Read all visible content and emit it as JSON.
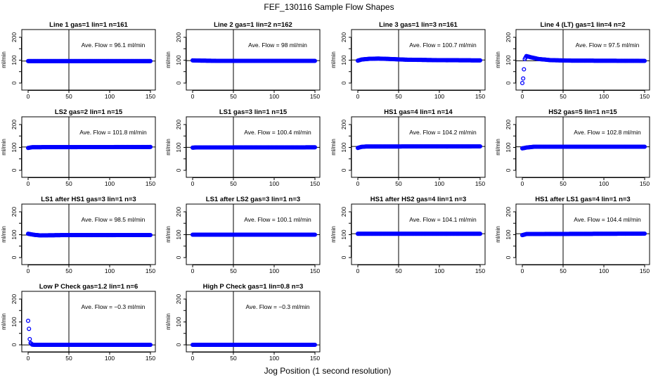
{
  "figure": {
    "title": "FEF_130116  Sample Flow Shapes",
    "xlabel": "Jog Position (1 second resolution)",
    "ylabel": "ml/min",
    "annotation_prefix": "Ave. Flow = ",
    "annotation_unit": "ml/min"
  },
  "colors": {
    "points": "#0000ff",
    "lines": "#000000",
    "background": "#ffffff"
  },
  "chart_data": [
    {
      "type": "scatter",
      "title": "Line 1 gas=1 lin=1 n=161",
      "ylabel": "ml/min",
      "xlim": [
        0,
        150
      ],
      "ylim": [
        0,
        200
      ],
      "x_ticks": [
        0,
        50,
        100,
        150
      ],
      "y_ticks": [
        0,
        100,
        200
      ],
      "vline": 50,
      "hline": 96.1,
      "ave_flow": "96.1",
      "profile": [
        [
          0,
          96
        ],
        [
          150,
          96
        ]
      ]
    },
    {
      "type": "scatter",
      "title": "Line 2 gas=1 lin=2 n=162",
      "ylabel": "ml/min",
      "xlim": [
        0,
        150
      ],
      "ylim": [
        0,
        200
      ],
      "x_ticks": [
        0,
        50,
        100,
        150
      ],
      "y_ticks": [
        0,
        100,
        200
      ],
      "vline": 50,
      "hline": 98,
      "ave_flow": "98",
      "profile": [
        [
          0,
          99
        ],
        [
          10,
          98
        ],
        [
          30,
          97
        ],
        [
          150,
          97
        ]
      ]
    },
    {
      "type": "scatter",
      "title": "Line 3 gas=1 lin=3 n=161",
      "ylabel": "ml/min",
      "xlim": [
        0,
        150
      ],
      "ylim": [
        0,
        200
      ],
      "x_ticks": [
        0,
        50,
        100,
        150
      ],
      "y_ticks": [
        0,
        100,
        200
      ],
      "vline": 50,
      "hline": 100.7,
      "ave_flow": "100.7",
      "profile": [
        [
          0,
          98
        ],
        [
          5,
          103
        ],
        [
          15,
          106
        ],
        [
          25,
          107
        ],
        [
          40,
          105
        ],
        [
          60,
          102
        ],
        [
          100,
          100
        ],
        [
          150,
          99
        ]
      ]
    },
    {
      "type": "scatter",
      "title": "Line 4 (LT) gas=1 lin=4 n=2",
      "ylabel": "ml/min",
      "xlim": [
        0,
        150
      ],
      "ylim": [
        0,
        200
      ],
      "x_ticks": [
        0,
        50,
        100,
        150
      ],
      "y_ticks": [
        0,
        100,
        200
      ],
      "vline": 50,
      "hline": 97.5,
      "ave_flow": "97.5",
      "profile": [
        [
          0,
          0
        ],
        [
          1,
          20
        ],
        [
          2,
          60
        ],
        [
          3,
          105
        ],
        [
          5,
          118
        ],
        [
          10,
          113
        ],
        [
          20,
          105
        ],
        [
          35,
          100
        ],
        [
          60,
          98
        ],
        [
          150,
          97
        ]
      ]
    },
    {
      "type": "scatter",
      "title": "LS2 gas=2 lin=1 n=15",
      "ylabel": "ml/min",
      "xlim": [
        0,
        150
      ],
      "ylim": [
        0,
        200
      ],
      "x_ticks": [
        0,
        50,
        100,
        150
      ],
      "y_ticks": [
        0,
        100,
        200
      ],
      "vline": 50,
      "hline": 101.8,
      "ave_flow": "101.8",
      "profile": [
        [
          0,
          98
        ],
        [
          5,
          101
        ],
        [
          150,
          102
        ]
      ]
    },
    {
      "type": "scatter",
      "title": "LS1 gas=3 lin=1 n=15",
      "ylabel": "ml/min",
      "xlim": [
        0,
        150
      ],
      "ylim": [
        0,
        200
      ],
      "x_ticks": [
        0,
        50,
        100,
        150
      ],
      "y_ticks": [
        0,
        100,
        200
      ],
      "vline": 50,
      "hline": 100.4,
      "ave_flow": "100.4",
      "profile": [
        [
          0,
          99
        ],
        [
          5,
          100
        ],
        [
          150,
          100.5
        ]
      ]
    },
    {
      "type": "scatter",
      "title": "HS1 gas=4 lin=1 n=14",
      "ylabel": "ml/min",
      "xlim": [
        0,
        150
      ],
      "ylim": [
        0,
        200
      ],
      "x_ticks": [
        0,
        50,
        100,
        150
      ],
      "y_ticks": [
        0,
        100,
        200
      ],
      "vline": 50,
      "hline": 104.2,
      "ave_flow": "104.2",
      "profile": [
        [
          0,
          98
        ],
        [
          4,
          102
        ],
        [
          10,
          104
        ],
        [
          150,
          104.5
        ]
      ]
    },
    {
      "type": "scatter",
      "title": "HS2 gas=5 lin=1 n=15",
      "ylabel": "ml/min",
      "xlim": [
        0,
        150
      ],
      "ylim": [
        0,
        200
      ],
      "x_ticks": [
        0,
        50,
        100,
        150
      ],
      "y_ticks": [
        0,
        100,
        200
      ],
      "vline": 50,
      "hline": 102.8,
      "ave_flow": "102.8",
      "profile": [
        [
          0,
          96
        ],
        [
          6,
          100
        ],
        [
          15,
          103
        ],
        [
          150,
          103
        ]
      ]
    },
    {
      "type": "scatter",
      "title": "LS1 after HS1 gas=3 lin=1 n=3",
      "ylabel": "ml/min",
      "xlim": [
        0,
        150
      ],
      "ylim": [
        0,
        200
      ],
      "x_ticks": [
        0,
        50,
        100,
        150
      ],
      "y_ticks": [
        0,
        100,
        200
      ],
      "vline": 50,
      "hline": 98.5,
      "ave_flow": "98.5",
      "profile": [
        [
          0,
          104
        ],
        [
          8,
          99
        ],
        [
          15,
          97
        ],
        [
          40,
          98
        ],
        [
          150,
          98.5
        ]
      ]
    },
    {
      "type": "scatter",
      "title": "LS1 after LS2 gas=3 lin=1 n=3",
      "ylabel": "ml/min",
      "xlim": [
        0,
        150
      ],
      "ylim": [
        0,
        200
      ],
      "x_ticks": [
        0,
        50,
        100,
        150
      ],
      "y_ticks": [
        0,
        100,
        200
      ],
      "vline": 50,
      "hline": 100.1,
      "ave_flow": "100.1",
      "profile": [
        [
          0,
          100
        ],
        [
          150,
          100
        ]
      ]
    },
    {
      "type": "scatter",
      "title": "HS1 after HS2 gas=4 lin=1 n=3",
      "ylabel": "ml/min",
      "xlim": [
        0,
        150
      ],
      "ylim": [
        0,
        200
      ],
      "x_ticks": [
        0,
        50,
        100,
        150
      ],
      "y_ticks": [
        0,
        100,
        200
      ],
      "vline": 50,
      "hline": 104.1,
      "ave_flow": "104.1",
      "profile": [
        [
          0,
          104
        ],
        [
          150,
          104
        ]
      ]
    },
    {
      "type": "scatter",
      "title": "HS1 after LS1 gas=4 lin=1 n=3",
      "ylabel": "ml/min",
      "xlim": [
        0,
        150
      ],
      "ylim": [
        0,
        200
      ],
      "x_ticks": [
        0,
        50,
        100,
        150
      ],
      "y_ticks": [
        0,
        100,
        200
      ],
      "vline": 50,
      "hline": 104.4,
      "ave_flow": "104.4",
      "profile": [
        [
          0,
          98
        ],
        [
          5,
          103
        ],
        [
          150,
          104.5
        ]
      ]
    },
    {
      "type": "scatter",
      "title": "Low P Check gas=1.2 lin=1 n=6",
      "ylabel": "ml/min",
      "xlim": [
        0,
        150
      ],
      "ylim": [
        0,
        200
      ],
      "x_ticks": [
        0,
        50,
        100,
        150
      ],
      "y_ticks": [
        0,
        100,
        200
      ],
      "vline": 50,
      "hline": -0.3,
      "ave_flow": "−0.3",
      "profile": [
        [
          0,
          105
        ],
        [
          1,
          70
        ],
        [
          2,
          25
        ],
        [
          3,
          8
        ],
        [
          5,
          1
        ],
        [
          8,
          0
        ],
        [
          150,
          0
        ]
      ]
    },
    {
      "type": "scatter",
      "title": "High P Check gas=1 lin=0.8 n=3",
      "ylabel": "ml/min",
      "xlim": [
        0,
        150
      ],
      "ylim": [
        0,
        200
      ],
      "x_ticks": [
        0,
        50,
        100,
        150
      ],
      "y_ticks": [
        0,
        100,
        200
      ],
      "vline": 50,
      "hline": -0.3,
      "ave_flow": "−0.3",
      "profile": [
        [
          0,
          0
        ],
        [
          150,
          0
        ]
      ]
    }
  ]
}
